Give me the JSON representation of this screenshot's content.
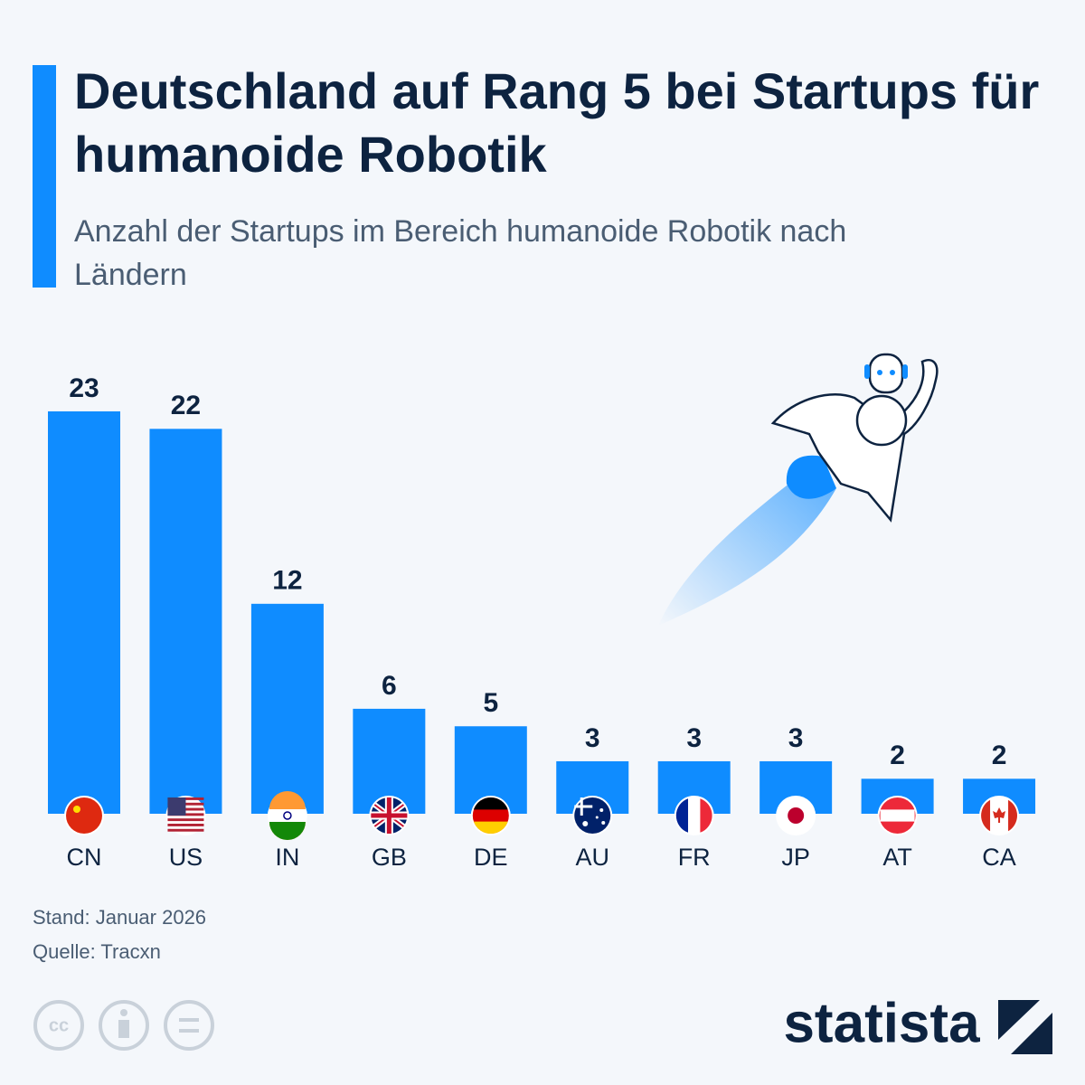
{
  "chart_data": {
    "type": "bar",
    "title": "Deutschland auf Rang 5 bei Startups für humanoide Robotik",
    "subtitle": "Anzahl der Startups im Bereich humanoide Robotik nach Ländern",
    "categories": [
      "CN",
      "US",
      "IN",
      "GB",
      "DE",
      "AU",
      "FR",
      "JP",
      "AT",
      "CA"
    ],
    "values": [
      23,
      22,
      12,
      6,
      5,
      3,
      3,
      3,
      2,
      2
    ],
    "color": "#0f8cff",
    "notes": [
      "Stand: Januar 2026",
      "Quelle: Tracxn"
    ],
    "brand": "statista"
  }
}
